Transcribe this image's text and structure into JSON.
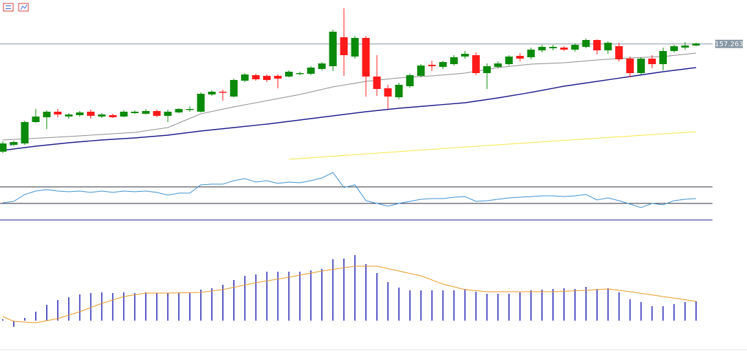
{
  "chart_data": [
    {
      "type": "candlestick",
      "ylim": [
        155.5,
        157.9
      ],
      "up_color": "#0a8a0a",
      "down_color": "#ff1a1a",
      "last_price": 157.263,
      "last_price_color": "#8696a4",
      "open": [
        155.7,
        155.8,
        155.82,
        156.13,
        156.2,
        156.28,
        156.21,
        156.23,
        156.28,
        156.21,
        156.23,
        156.21,
        156.26,
        156.25,
        156.29,
        156.22,
        156.27,
        156.31,
        156.28,
        156.53,
        156.57,
        156.5,
        156.73,
        156.81,
        156.8,
        156.8,
        156.79,
        156.83,
        156.83,
        156.9,
        156.94,
        157.36,
        157.08,
        157.35,
        156.79,
        156.62,
        156.49,
        156.65,
        156.8,
        156.96,
        156.93,
        156.97,
        157.08,
        157.1,
        156.84,
        156.93,
        156.97,
        157.09,
        157.07,
        157.17,
        157.2,
        157.21,
        157.18,
        157.22,
        157.32,
        157.17,
        157.23,
        157.05,
        156.84,
        157.05,
        156.97,
        157.16,
        157.21,
        157.24
      ],
      "high": [
        155.85,
        155.86,
        156.15,
        156.32,
        156.3,
        156.32,
        156.26,
        156.29,
        156.31,
        156.26,
        156.25,
        156.3,
        156.3,
        156.32,
        156.31,
        156.31,
        156.33,
        156.36,
        156.56,
        156.59,
        156.6,
        156.76,
        156.84,
        156.83,
        156.82,
        156.82,
        156.88,
        156.86,
        156.94,
        157.0,
        157.47,
        157.78,
        157.38,
        157.38,
        157.1,
        156.67,
        156.7,
        156.83,
        156.97,
        157.02,
        157.02,
        157.1,
        157.16,
        157.14,
        156.98,
        157.01,
        157.1,
        157.13,
        157.21,
        157.25,
        157.25,
        157.23,
        157.27,
        157.34,
        157.33,
        157.3,
        157.28,
        157.08,
        157.07,
        157.1,
        157.21,
        157.25,
        157.29,
        157.28
      ],
      "low": [
        155.68,
        155.78,
        155.8,
        156.12,
        156.03,
        156.2,
        156.18,
        156.21,
        156.18,
        156.19,
        156.19,
        156.2,
        156.25,
        156.24,
        156.2,
        156.13,
        156.26,
        156.28,
        156.27,
        156.51,
        156.44,
        156.49,
        156.71,
        156.73,
        156.71,
        156.62,
        156.78,
        156.81,
        156.81,
        156.88,
        156.87,
        156.8,
        157.05,
        156.5,
        156.51,
        156.32,
        156.46,
        156.63,
        156.78,
        156.87,
        156.9,
        156.95,
        157.05,
        156.81,
        156.61,
        156.91,
        156.95,
        157.01,
        157.04,
        157.14,
        157.17,
        157.16,
        157.15,
        157.2,
        157.11,
        157.12,
        157.01,
        156.78,
        156.82,
        156.91,
        156.88,
        157.14,
        157.18,
        157.23
      ],
      "close": [
        155.82,
        155.84,
        156.13,
        156.21,
        156.28,
        156.24,
        156.24,
        156.27,
        156.22,
        156.24,
        156.2,
        156.28,
        156.28,
        156.29,
        156.22,
        156.28,
        156.32,
        156.32,
        156.54,
        156.57,
        156.56,
        156.74,
        156.82,
        156.75,
        156.74,
        156.76,
        156.86,
        156.84,
        156.92,
        156.98,
        157.44,
        157.1,
        157.35,
        156.79,
        156.61,
        156.5,
        156.67,
        156.81,
        156.95,
        156.94,
        157.0,
        157.07,
        157.12,
        156.84,
        156.94,
        156.98,
        157.08,
        157.05,
        157.18,
        157.22,
        157.22,
        157.18,
        157.25,
        157.32,
        157.17,
        157.28,
        157.04,
        156.84,
        157.05,
        156.97,
        157.16,
        157.23,
        157.24,
        157.27
      ],
      "overlays": [
        {
          "color": "#8c8c8c",
          "x": [
            0,
            6,
            12,
            15,
            18,
            21,
            24,
            27,
            30,
            33,
            36,
            39,
            42,
            45,
            48,
            51,
            54,
            57,
            60,
            63
          ],
          "values": [
            155.87,
            155.92,
            155.98,
            156.05,
            156.25,
            156.35,
            156.44,
            156.53,
            156.64,
            156.72,
            156.77,
            156.8,
            156.84,
            156.92,
            156.97,
            156.99,
            157.03,
            157.06,
            157.08,
            157.13
          ]
        },
        {
          "color": "#1a1a8c",
          "x": [
            0,
            3,
            6,
            9,
            12,
            15,
            18,
            21,
            24,
            27,
            30,
            33,
            36,
            39,
            42,
            45,
            48,
            51,
            54,
            57,
            60,
            63
          ],
          "values": [
            155.72,
            155.78,
            155.83,
            155.87,
            155.9,
            155.94,
            156.0,
            156.05,
            156.1,
            156.16,
            156.22,
            156.28,
            156.33,
            156.37,
            156.41,
            156.48,
            156.56,
            156.65,
            156.72,
            156.79,
            156.86,
            156.92
          ]
        },
        {
          "color": "#f5e642",
          "x": [
            26,
            44,
            63
          ],
          "values": [
            155.59,
            155.79,
            155.99
          ]
        }
      ]
    },
    {
      "type": "line",
      "ylim": [
        20,
        90
      ],
      "levels": [
        30,
        50,
        70
      ],
      "level_color": "#2a2a3a",
      "series": [
        {
          "color": "#3a8fd0",
          "values": [
            50.8,
            52.5,
            60.8,
            65.0,
            66.7,
            65.0,
            64.2,
            65.0,
            63.3,
            65.0,
            63.3,
            65.0,
            64.2,
            65.0,
            63.3,
            60.0,
            62.5,
            62.5,
            72.5,
            73.3,
            73.3,
            77.5,
            80.0,
            75.8,
            77.5,
            74.2,
            75.8,
            75.0,
            77.5,
            80.8,
            87.5,
            69.2,
            72.5,
            53.3,
            50.0,
            46.7,
            50.0,
            52.5,
            55.0,
            55.8,
            55.8,
            57.5,
            58.3,
            52.5,
            53.3,
            55.0,
            56.7,
            57.5,
            58.3,
            59.2,
            59.2,
            58.3,
            59.2,
            60.8,
            54.2,
            56.7,
            53.3,
            49.2,
            45.0,
            50.0,
            48.3,
            53.3,
            55.0,
            55.8
          ]
        }
      ]
    },
    {
      "type": "bar",
      "ylim": [
        -0.15,
        1.05
      ],
      "series": [
        {
          "type": "bar",
          "color": "#1f1fb4",
          "values": [
            0.02,
            -0.09,
            0.04,
            0.13,
            0.23,
            0.3,
            0.34,
            0.38,
            0.4,
            0.41,
            0.4,
            0.41,
            0.4,
            0.41,
            0.4,
            0.4,
            0.4,
            0.4,
            0.45,
            0.47,
            0.52,
            0.59,
            0.65,
            0.67,
            0.71,
            0.71,
            0.71,
            0.71,
            0.73,
            0.75,
            0.89,
            0.9,
            0.95,
            0.82,
            0.69,
            0.56,
            0.48,
            0.44,
            0.44,
            0.44,
            0.44,
            0.44,
            0.46,
            0.42,
            0.39,
            0.39,
            0.39,
            0.41,
            0.44,
            0.45,
            0.46,
            0.47,
            0.46,
            0.49,
            0.46,
            0.47,
            0.41,
            0.31,
            0.27,
            0.21,
            0.21,
            0.24,
            0.27,
            0.28
          ]
        },
        {
          "type": "line",
          "color": "#e8961e",
          "x": [
            0,
            1,
            3,
            5,
            7,
            9,
            11,
            13,
            15,
            18,
            20,
            23,
            26,
            29,
            32,
            34,
            36,
            38,
            40,
            42,
            44,
            47,
            50,
            53,
            55,
            57,
            60,
            63
          ],
          "values": [
            0.06,
            -0.01,
            -0.03,
            0.03,
            0.13,
            0.25,
            0.35,
            0.4,
            0.4,
            0.41,
            0.45,
            0.55,
            0.63,
            0.72,
            0.79,
            0.79,
            0.72,
            0.65,
            0.53,
            0.45,
            0.42,
            0.42,
            0.42,
            0.44,
            0.46,
            0.42,
            0.35,
            0.28
          ]
        }
      ]
    }
  ]
}
